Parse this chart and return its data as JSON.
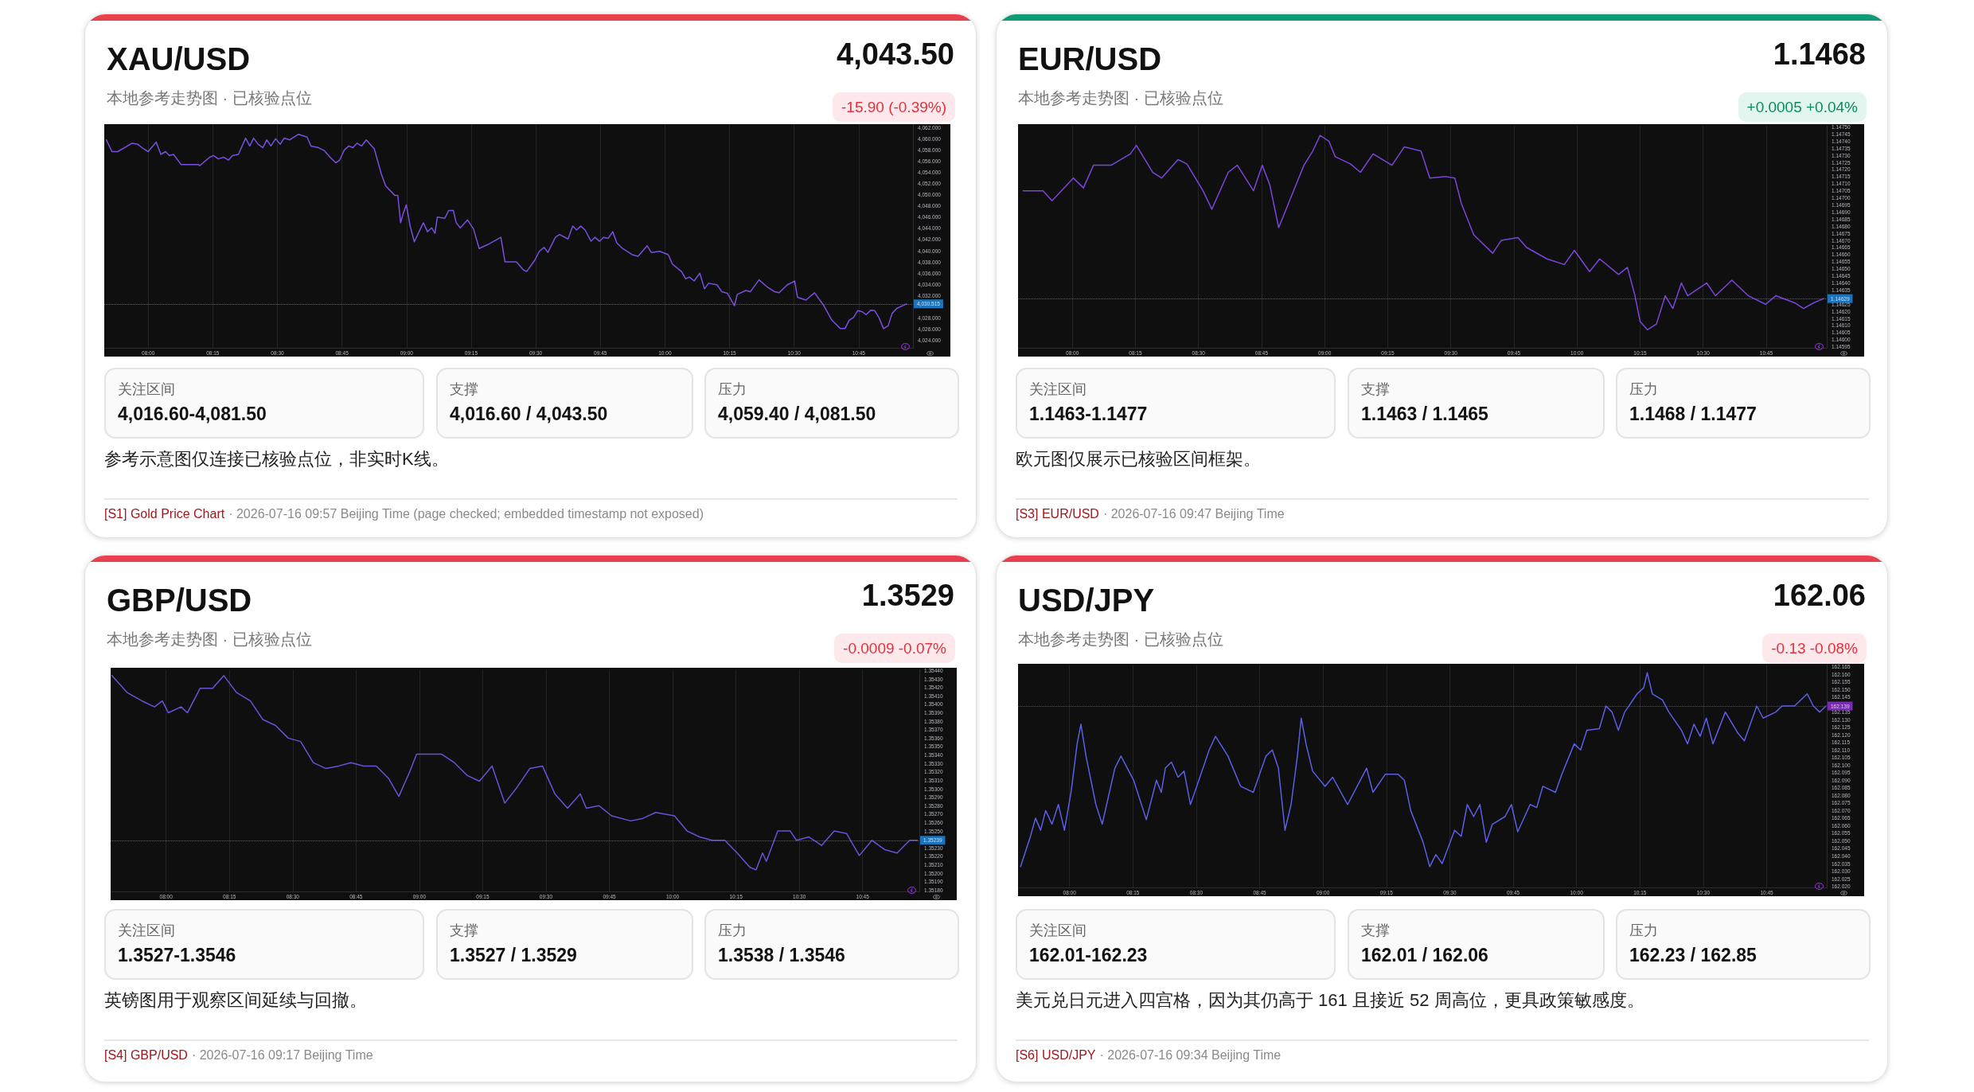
{
  "chart_data": [
    {
      "type": "line",
      "title": "XAU/USD",
      "subtitle": "本地参考走势图 · 已核验点位",
      "annotations": [
        "4,043.50",
        "-15.90 (-0.39%)",
        "关注区间",
        "4,016.60-4,081.50",
        "支撑",
        "4,016.60 / 4,043.50",
        "压力",
        "4,059.40 / 4,081.50",
        "参考示意图仅连接已核验点位，非实时K线。",
        "[S1] Gold Price Chart",
        "· 2026-07-16 09:57 Beijing Time (page checked; embedded timestamp not exposed)"
      ],
      "x": [
        7.838,
        7.86,
        7.882,
        7.938,
        7.96,
        7.982,
        8.0,
        8.031,
        8.049,
        8.067,
        8.082,
        8.098,
        8.127,
        8.193,
        8.2,
        8.238,
        8.253,
        8.271,
        8.293,
        8.311,
        8.326,
        8.349,
        8.377,
        8.393,
        8.408,
        8.426,
        8.444,
        8.459,
        8.475,
        8.493,
        8.511,
        8.526,
        8.548,
        8.582,
        8.615,
        8.63,
        8.659,
        8.681,
        8.704,
        8.726,
        8.741,
        8.759,
        8.777,
        8.792,
        8.808,
        8.826,
        8.844,
        8.859,
        8.875,
        8.903,
        8.919,
        8.954,
        8.966,
        8.977,
        8.986,
        8.999,
        9.014,
        9.03,
        9.065,
        9.081,
        9.097,
        9.11,
        9.119,
        9.148,
        9.163,
        9.181,
        9.192,
        9.208,
        9.236,
        9.259,
        9.281,
        9.314,
        9.365,
        9.381,
        9.425,
        9.452,
        9.465,
        9.496,
        9.514,
        9.532,
        9.547,
        9.576,
        9.592,
        9.625,
        9.643,
        9.658,
        9.674,
        9.691,
        9.714,
        9.729,
        9.747,
        9.762,
        9.78,
        9.798,
        9.814,
        9.836,
        9.873,
        9.896,
        9.931,
        9.947,
        9.98,
        10.013,
        10.029,
        10.064,
        10.08,
        10.095,
        10.113,
        10.135,
        10.153,
        10.169,
        10.202,
        10.22,
        10.242,
        10.269,
        10.28,
        10.313,
        10.331,
        10.364,
        10.397,
        10.424,
        10.442,
        10.473,
        10.502,
        10.513,
        10.546,
        10.579,
        10.615,
        10.646,
        10.679,
        10.697,
        10.713,
        10.73,
        10.746,
        10.764,
        10.779,
        10.797,
        10.812,
        10.828,
        10.846,
        10.864,
        10.879,
        10.897,
        10.935
      ],
      "series": [
        {
          "color": "#7a4fe0",
          "values": [
            4059.8,
            4057.7,
            4057.7,
            4059.2,
            4059.0,
            4058.2,
            4057.7,
            4059.4,
            4057.2,
            4057.7,
            4057.0,
            4057.2,
            4055.4,
            4055.4,
            4055.2,
            4056.7,
            4057.0,
            4056.4,
            4056.7,
            4056.2,
            4057.0,
            4057.2,
            4060.1,
            4058.7,
            4060.1,
            4059.0,
            4058.4,
            4059.8,
            4058.7,
            4060.0,
            4059.0,
            4060.1,
            4059.8,
            4060.8,
            4060.3,
            4058.7,
            4058.4,
            4057.9,
            4056.7,
            4055.7,
            4056.2,
            4058.0,
            4058.7,
            4058.4,
            4059.2,
            4058.7,
            4059.8,
            4059.0,
            4058.2,
            4053.6,
            4051.6,
            4049.9,
            4049.9,
            4045.0,
            4046.5,
            4048.2,
            4044.4,
            4041.6,
            4045.0,
            4043.4,
            4044.1,
            4043.1,
            4046.0,
            4045.8,
            4047.2,
            4047.2,
            4045.0,
            4044.1,
            4045.5,
            4043.9,
            4040.4,
            4041.1,
            4042.4,
            4038.0,
            4038.0,
            4036.6,
            4036.3,
            4038.3,
            4039.9,
            4040.6,
            4039.7,
            4042.4,
            4042.9,
            4042.1,
            4044.4,
            4043.7,
            4044.4,
            4043.7,
            4041.7,
            4042.4,
            4041.7,
            4042.4,
            4042.2,
            4043.4,
            4041.4,
            4040.4,
            4039.3,
            4039.0,
            4040.9,
            4039.7,
            4039.9,
            4039.3,
            4037.6,
            4036.3,
            4035.0,
            4035.3,
            4034.6,
            4036.0,
            4033.2,
            4034.2,
            4033.9,
            4032.7,
            4032.4,
            4030.2,
            4032.2,
            4032.9,
            4032.7,
            4034.8,
            4033.5,
            4032.7,
            4032.5,
            4033.9,
            4034.6,
            4031.7,
            4031.2,
            4032.5,
            4030.2,
            4027.6,
            4026.1,
            4026.1,
            4027.6,
            4028.1,
            4029.3,
            4029.1,
            4028.6,
            4029.4,
            4029.3,
            4028.1,
            4026.1,
            4026.6,
            4028.8,
            4029.7,
            4030.5
          ]
        }
      ],
      "xlim": [
        7.83,
        10.96
      ],
      "ylim": [
        4022.6,
        4062.6
      ],
      "grid": "x",
      "xticks": [
        {
          "value": 8,
          "label": "08:00"
        },
        {
          "value": 8.25,
          "label": "08:15"
        },
        {
          "value": 8.5,
          "label": "08:30"
        },
        {
          "value": 8.75,
          "label": "08:45"
        },
        {
          "value": 9,
          "label": "09:00"
        },
        {
          "value": 9.25,
          "label": "09:15"
        },
        {
          "value": 9.5,
          "label": "09:30"
        },
        {
          "value": 9.75,
          "label": "09:45"
        },
        {
          "value": 10,
          "label": "10:00"
        },
        {
          "value": 10.25,
          "label": "10:15"
        },
        {
          "value": 10.5,
          "label": "10:30"
        },
        {
          "value": 10.75,
          "label": "10:45"
        }
      ],
      "yticks": [
        {
          "value": 4024,
          "label": "4,024.000"
        },
        {
          "value": 4026,
          "label": "4,026.000"
        },
        {
          "value": 4028,
          "label": "4,028.000"
        },
        {
          "value": 4032,
          "label": "4,032.000"
        },
        {
          "value": 4034,
          "label": "4,034.000"
        },
        {
          "value": 4036,
          "label": "4,036.000"
        },
        {
          "value": 4038,
          "label": "4,038.000"
        },
        {
          "value": 4040,
          "label": "4,040.000"
        },
        {
          "value": 4042,
          "label": "4,042.000"
        },
        {
          "value": 4044,
          "label": "4,044.000"
        },
        {
          "value": 4046,
          "label": "4,046.000"
        },
        {
          "value": 4048,
          "label": "4,048.000"
        },
        {
          "value": 4050,
          "label": "4,050.000"
        },
        {
          "value": 4052,
          "label": "4,052.000"
        },
        {
          "value": 4054,
          "label": "4,054.000"
        },
        {
          "value": 4056,
          "label": "4,056.000"
        },
        {
          "value": 4058,
          "label": "4,058.000"
        },
        {
          "value": 4060,
          "label": "4,060.000"
        },
        {
          "value": 4062,
          "label": "4,062.000"
        }
      ],
      "ref_lines": [
        {
          "axis": "y",
          "value": 4030.515,
          "label": "4,030.515",
          "color": "#2196f3",
          "line_style": "dotted"
        }
      ]
    },
    {
      "type": "line",
      "title": "EUR/USD",
      "subtitle": "本地参考走势图 · 已核验点位",
      "annotations": [
        "1.1468",
        "+0.0005 +0.04%",
        "关注区间",
        "1.1463-1.1477",
        "支撑",
        "1.1463 / 1.1465",
        "压力",
        "1.1468 / 1.1477",
        "欧元图仅展示已核验区间框架。",
        "[S3] EUR/USD",
        "· 2026-07-16 09:47 Beijing Time"
      ],
      "x": [
        7.805,
        7.884,
        7.92,
        8.004,
        8.044,
        8.084,
        8.154,
        8.23,
        8.254,
        8.319,
        8.354,
        8.419,
        8.454,
        8.518,
        8.553,
        8.618,
        8.654,
        8.718,
        8.753,
        8.783,
        8.818,
        8.868,
        8.918,
        8.953,
        8.982,
        9.017,
        9.042,
        9.102,
        9.142,
        9.192,
        9.267,
        9.316,
        9.382,
        9.417,
        9.481,
        9.516,
        9.542,
        9.591,
        9.666,
        9.7,
        9.766,
        9.801,
        9.881,
        9.95,
        9.99,
        10.05,
        10.09,
        10.165,
        10.2,
        10.23,
        10.25,
        10.279,
        10.315,
        10.35,
        10.38,
        10.414,
        10.439,
        10.514,
        10.549,
        10.614,
        10.679,
        10.748,
        10.788,
        10.863,
        10.898,
        10.938,
        10.978
      ],
      "series": [
        {
          "color": "#7b45dc",
          "values": [
            1.14705,
            1.14705,
            1.14698,
            1.14714,
            1.14707,
            1.14723,
            1.14723,
            1.14731,
            1.14737,
            1.14718,
            1.14714,
            1.14727,
            1.14724,
            1.14705,
            1.14692,
            1.14718,
            1.14723,
            1.14705,
            1.14723,
            1.14709,
            1.14679,
            1.14701,
            1.14723,
            1.14733,
            1.14744,
            1.1474,
            1.14729,
            1.14724,
            1.14718,
            1.14731,
            1.14723,
            1.14736,
            1.14733,
            1.14714,
            1.14715,
            1.14714,
            1.14696,
            1.14674,
            1.14661,
            1.1467,
            1.14672,
            1.14665,
            1.14657,
            1.14653,
            1.14663,
            1.14648,
            1.14657,
            1.14646,
            1.14651,
            1.14631,
            1.14613,
            1.14607,
            1.14611,
            1.14631,
            1.14622,
            1.1464,
            1.14631,
            1.1464,
            1.14631,
            1.14642,
            1.14631,
            1.14625,
            1.14631,
            1.14626,
            1.14622,
            1.14626,
            1.14629
          ]
        }
      ],
      "xlim": [
        7.785,
        10.99
      ],
      "ylim": [
        1.14594,
        1.14751
      ],
      "grid": "x",
      "xticks": [
        {
          "value": 8,
          "label": "08:00"
        },
        {
          "value": 8.25,
          "label": "08:15"
        },
        {
          "value": 8.5,
          "label": "08:30"
        },
        {
          "value": 8.75,
          "label": "08:45"
        },
        {
          "value": 9,
          "label": "09:00"
        },
        {
          "value": 9.25,
          "label": "09:15"
        },
        {
          "value": 9.5,
          "label": "09:30"
        },
        {
          "value": 9.75,
          "label": "09:45"
        },
        {
          "value": 10,
          "label": "10:00"
        },
        {
          "value": 10.25,
          "label": "10:15"
        },
        {
          "value": 10.5,
          "label": "10:30"
        },
        {
          "value": 10.75,
          "label": "10:45"
        }
      ],
      "yticks": [
        {
          "value": 1.14595,
          "label": "1.14595"
        },
        {
          "value": 1.146,
          "label": "1.14600"
        },
        {
          "value": 1.14605,
          "label": "1.14605"
        },
        {
          "value": 1.1461,
          "label": "1.14610"
        },
        {
          "value": 1.14615,
          "label": "1.14615"
        },
        {
          "value": 1.1462,
          "label": "1.14620"
        },
        {
          "value": 1.14625,
          "label": "1.14625"
        },
        {
          "value": 1.14635,
          "label": "1.14635"
        },
        {
          "value": 1.1464,
          "label": "1.14640"
        },
        {
          "value": 1.14645,
          "label": "1.14645"
        },
        {
          "value": 1.1465,
          "label": "1.14650"
        },
        {
          "value": 1.14655,
          "label": "1.14655"
        },
        {
          "value": 1.1466,
          "label": "1.14660"
        },
        {
          "value": 1.14665,
          "label": "1.14665"
        },
        {
          "value": 1.1467,
          "label": "1.14670"
        },
        {
          "value": 1.14675,
          "label": "1.14675"
        },
        {
          "value": 1.1468,
          "label": "1.14680"
        },
        {
          "value": 1.14685,
          "label": "1.14685"
        },
        {
          "value": 1.1469,
          "label": "1.14690"
        },
        {
          "value": 1.14695,
          "label": "1.14695"
        },
        {
          "value": 1.147,
          "label": "1.14700"
        },
        {
          "value": 1.14705,
          "label": "1.14705"
        },
        {
          "value": 1.1471,
          "label": "1.14710"
        },
        {
          "value": 1.14715,
          "label": "1.14715"
        },
        {
          "value": 1.1472,
          "label": "1.14720"
        },
        {
          "value": 1.14725,
          "label": "1.14725"
        },
        {
          "value": 1.1473,
          "label": "1.14730"
        },
        {
          "value": 1.14735,
          "label": "1.14735"
        },
        {
          "value": 1.1474,
          "label": "1.14740"
        },
        {
          "value": 1.14745,
          "label": "1.14745"
        },
        {
          "value": 1.1475,
          "label": "1.14750"
        }
      ],
      "ref_lines": [
        {
          "axis": "y",
          "value": 1.14629,
          "label": "1.14629",
          "color": "#2196f3",
          "line_style": "dotted"
        }
      ]
    },
    {
      "type": "line",
      "title": "GBP/USD",
      "subtitle": "本地参考走势图 · 已核验点位",
      "annotations": [
        "1.3529",
        "-0.0009 -0.07%",
        "关注区间",
        "1.3527-1.3546",
        "支撑",
        "1.3527 / 1.3529",
        "压力",
        "1.3538 / 1.3546",
        "英镑图用于观察区间延续与回撤。",
        "[S4] GBP/USD",
        "· 2026-07-16 09:17 Beijing Time"
      ],
      "x": [
        7.786,
        7.846,
        7.905,
        7.954,
        7.985,
        8.009,
        8.059,
        8.084,
        8.134,
        8.184,
        8.228,
        8.278,
        8.333,
        8.382,
        8.432,
        8.482,
        8.531,
        8.581,
        8.631,
        8.681,
        8.73,
        8.78,
        8.83,
        8.879,
        8.919,
        8.963,
        8.989,
        9.039,
        9.088,
        9.138,
        9.188,
        9.237,
        9.287,
        9.337,
        9.386,
        9.436,
        9.486,
        9.535,
        9.585,
        9.635,
        9.659,
        9.709,
        9.759,
        9.834,
        9.883,
        9.933,
        10.007,
        10.057,
        10.106,
        10.156,
        10.206,
        10.255,
        10.305,
        10.329,
        10.355,
        10.37,
        10.415,
        10.464,
        10.489,
        10.538,
        10.588,
        10.638,
        10.687,
        10.737,
        10.787,
        10.837,
        10.886,
        10.936,
        10.966
      ],
      "series": [
        {
          "color": "#6a52d8",
          "values": [
            1.35434,
            1.35414,
            1.35404,
            1.35397,
            1.35404,
            1.3539,
            1.35397,
            1.3539,
            1.35419,
            1.35419,
            1.35434,
            1.35414,
            1.35404,
            1.35382,
            1.35375,
            1.3536,
            1.35356,
            1.35331,
            1.35324,
            1.35327,
            1.35331,
            1.35327,
            1.35327,
            1.35312,
            1.35291,
            1.35321,
            1.35341,
            1.35341,
            1.35341,
            1.35331,
            1.35316,
            1.35309,
            1.35327,
            1.35283,
            1.35302,
            1.35324,
            1.35327,
            1.35294,
            1.35277,
            1.35294,
            1.35277,
            1.3528,
            1.35268,
            1.35262,
            1.35265,
            1.35272,
            1.35268,
            1.3525,
            1.35243,
            1.35239,
            1.35239,
            1.35224,
            1.35207,
            1.35204,
            1.35224,
            1.35214,
            1.3525,
            1.3525,
            1.35239,
            1.35243,
            1.35233,
            1.3525,
            1.35247,
            1.35221,
            1.35239,
            1.35228,
            1.35224,
            1.35239,
            1.35239
          ]
        }
      ],
      "xlim": [
        7.781,
        10.974
      ],
      "ylim": [
        1.35178,
        1.35441
      ],
      "grid": "x",
      "xticks": [
        {
          "value": 8,
          "label": "08:00"
        },
        {
          "value": 8.25,
          "label": "08:15"
        },
        {
          "value": 8.5,
          "label": "08:30"
        },
        {
          "value": 8.75,
          "label": "08:45"
        },
        {
          "value": 9,
          "label": "09:00"
        },
        {
          "value": 9.25,
          "label": "09:15"
        },
        {
          "value": 9.5,
          "label": "09:30"
        },
        {
          "value": 9.75,
          "label": "09:45"
        },
        {
          "value": 10,
          "label": "10:00"
        },
        {
          "value": 10.25,
          "label": "10:15"
        },
        {
          "value": 10.5,
          "label": "10:30"
        },
        {
          "value": 10.75,
          "label": "10:45"
        }
      ],
      "yticks": [
        {
          "value": 1.3518,
          "label": "1.35180"
        },
        {
          "value": 1.3519,
          "label": "1.35190"
        },
        {
          "value": 1.352,
          "label": "1.35200"
        },
        {
          "value": 1.3521,
          "label": "1.35210"
        },
        {
          "value": 1.3522,
          "label": "1.35220"
        },
        {
          "value": 1.3523,
          "label": "1.35230"
        },
        {
          "value": 1.3525,
          "label": "1.35250"
        },
        {
          "value": 1.3526,
          "label": "1.35260"
        },
        {
          "value": 1.3527,
          "label": "1.35270"
        },
        {
          "value": 1.3528,
          "label": "1.35280"
        },
        {
          "value": 1.3529,
          "label": "1.35290"
        },
        {
          "value": 1.353,
          "label": "1.35300"
        },
        {
          "value": 1.3531,
          "label": "1.35310"
        },
        {
          "value": 1.3532,
          "label": "1.35320"
        },
        {
          "value": 1.3533,
          "label": "1.35330"
        },
        {
          "value": 1.3534,
          "label": "1.35340"
        },
        {
          "value": 1.3535,
          "label": "1.35350"
        },
        {
          "value": 1.3536,
          "label": "1.35360"
        },
        {
          "value": 1.3537,
          "label": "1.35370"
        },
        {
          "value": 1.3538,
          "label": "1.35380"
        },
        {
          "value": 1.3539,
          "label": "1.35390"
        },
        {
          "value": 1.354,
          "label": "1.35400"
        },
        {
          "value": 1.3541,
          "label": "1.35410"
        },
        {
          "value": 1.3542,
          "label": "1.35420"
        },
        {
          "value": 1.3543,
          "label": "1.35430"
        },
        {
          "value": 1.3544,
          "label": "1.35440"
        }
      ],
      "ref_lines": [
        {
          "axis": "y",
          "value": 1.35239,
          "label": "1.35239",
          "color": "#2196f3",
          "line_style": "dotted"
        }
      ]
    },
    {
      "type": "line",
      "title": "USD/JPY",
      "subtitle": "本地参考走势图 · 已核验点位",
      "annotations": [
        "162.06",
        "-0.13 -0.08%",
        "关注区间",
        "162.01-162.23",
        "支撑",
        "162.01 / 162.06",
        "压力",
        "162.23 / 162.85",
        "美元兑日元进入四宫格，因为其仍高于 161 且接近 52 周高位，更具政策敏感度。",
        "[S6] USD/JPY",
        "· 2026-07-16 09:34 Beijing Time"
      ],
      "x": [
        7.807,
        7.846,
        7.866,
        7.886,
        7.906,
        7.931,
        7.956,
        7.98,
        8.006,
        8.03,
        8.045,
        8.065,
        8.104,
        8.129,
        8.179,
        8.203,
        8.253,
        8.303,
        8.343,
        8.362,
        8.378,
        8.402,
        8.428,
        8.452,
        8.477,
        8.502,
        8.551,
        8.576,
        8.625,
        8.675,
        8.725,
        8.775,
        8.8,
        8.824,
        8.85,
        8.874,
        8.899,
        8.914,
        8.933,
        8.959,
        9.008,
        9.038,
        9.097,
        9.147,
        9.172,
        9.197,
        9.246,
        9.296,
        9.321,
        9.346,
        9.395,
        9.421,
        9.445,
        9.47,
        9.519,
        9.545,
        9.569,
        9.594,
        9.619,
        9.644,
        9.668,
        9.718,
        9.743,
        9.768,
        9.817,
        9.843,
        9.867,
        9.917,
        9.942,
        9.991,
        10.016,
        10.041,
        10.09,
        10.116,
        10.14,
        10.165,
        10.19,
        10.239,
        10.265,
        10.279,
        10.299,
        10.339,
        10.364,
        10.414,
        10.438,
        10.463,
        10.488,
        10.512,
        10.538,
        10.587,
        10.637,
        10.662,
        10.711,
        10.736,
        10.786,
        10.811,
        10.86,
        10.91,
        10.934,
        10.959,
        10.984
      ],
      "series": [
        {
          "color": "#5b5fe6",
          "values": [
            162.033,
            162.053,
            162.065,
            162.057,
            162.07,
            162.061,
            162.074,
            162.057,
            162.082,
            162.114,
            162.127,
            162.106,
            162.074,
            162.061,
            162.098,
            162.106,
            162.09,
            162.064,
            162.09,
            162.082,
            162.098,
            162.102,
            162.092,
            162.096,
            162.074,
            162.086,
            162.11,
            162.119,
            162.106,
            162.086,
            162.082,
            162.106,
            162.11,
            162.098,
            162.057,
            162.074,
            162.106,
            162.131,
            162.114,
            162.096,
            162.086,
            162.092,
            162.074,
            162.09,
            162.098,
            162.082,
            162.094,
            162.094,
            162.09,
            162.07,
            162.049,
            162.033,
            162.041,
            162.035,
            162.057,
            162.053,
            162.074,
            162.066,
            162.074,
            162.049,
            162.061,
            162.066,
            162.074,
            162.056,
            162.074,
            162.072,
            162.086,
            162.082,
            162.094,
            162.114,
            162.11,
            162.123,
            162.124,
            162.139,
            162.135,
            162.123,
            162.135,
            162.147,
            162.151,
            162.161,
            162.147,
            162.143,
            162.135,
            162.123,
            162.114,
            162.127,
            162.119,
            162.131,
            162.114,
            162.135,
            162.121,
            162.116,
            162.139,
            162.131,
            162.135,
            162.139,
            162.139,
            162.147,
            162.139,
            162.135,
            162.139
          ]
        }
      ],
      "xlim": [
        7.797,
        10.987
      ],
      "ylim": [
        162.019,
        162.166
      ],
      "grid": "x",
      "xticks": [
        {
          "value": 8,
          "label": "08:00"
        },
        {
          "value": 8.25,
          "label": "08:15"
        },
        {
          "value": 8.5,
          "label": "08:30"
        },
        {
          "value": 8.75,
          "label": "08:45"
        },
        {
          "value": 9,
          "label": "09:00"
        },
        {
          "value": 9.25,
          "label": "09:15"
        },
        {
          "value": 9.5,
          "label": "09:30"
        },
        {
          "value": 9.75,
          "label": "09:45"
        },
        {
          "value": 10,
          "label": "10:00"
        },
        {
          "value": 10.25,
          "label": "10:15"
        },
        {
          "value": 10.5,
          "label": "10:30"
        },
        {
          "value": 10.75,
          "label": "10:45"
        }
      ],
      "yticks": [
        {
          "value": 162.02,
          "label": "162.020"
        },
        {
          "value": 162.025,
          "label": "162.025"
        },
        {
          "value": 162.03,
          "label": "162.030"
        },
        {
          "value": 162.035,
          "label": "162.035"
        },
        {
          "value": 162.04,
          "label": "162.040"
        },
        {
          "value": 162.045,
          "label": "162.045"
        },
        {
          "value": 162.05,
          "label": "162.050"
        },
        {
          "value": 162.055,
          "label": "162.055"
        },
        {
          "value": 162.06,
          "label": "162.060"
        },
        {
          "value": 162.065,
          "label": "162.065"
        },
        {
          "value": 162.07,
          "label": "162.070"
        },
        {
          "value": 162.075,
          "label": "162.075"
        },
        {
          "value": 162.08,
          "label": "162.080"
        },
        {
          "value": 162.085,
          "label": "162.085"
        },
        {
          "value": 162.09,
          "label": "162.090"
        },
        {
          "value": 162.095,
          "label": "162.095"
        },
        {
          "value": 162.1,
          "label": "162.100"
        },
        {
          "value": 162.105,
          "label": "162.105"
        },
        {
          "value": 162.11,
          "label": "162.110"
        },
        {
          "value": 162.115,
          "label": "162.115"
        },
        {
          "value": 162.12,
          "label": "162.120"
        },
        {
          "value": 162.125,
          "label": "162.125"
        },
        {
          "value": 162.13,
          "label": "162.130"
        },
        {
          "value": 162.135,
          "label": "162.135"
        },
        {
          "value": 162.145,
          "label": "162.145"
        },
        {
          "value": 162.15,
          "label": "162.150"
        },
        {
          "value": 162.155,
          "label": "162.155"
        },
        {
          "value": 162.16,
          "label": "162.160"
        },
        {
          "value": 162.165,
          "label": "162.165"
        }
      ],
      "ref_lines": [
        {
          "axis": "y",
          "value": 162.139,
          "label": "162.139",
          "color": "#9c36e8",
          "line_style": "dotted"
        }
      ]
    }
  ]
}
